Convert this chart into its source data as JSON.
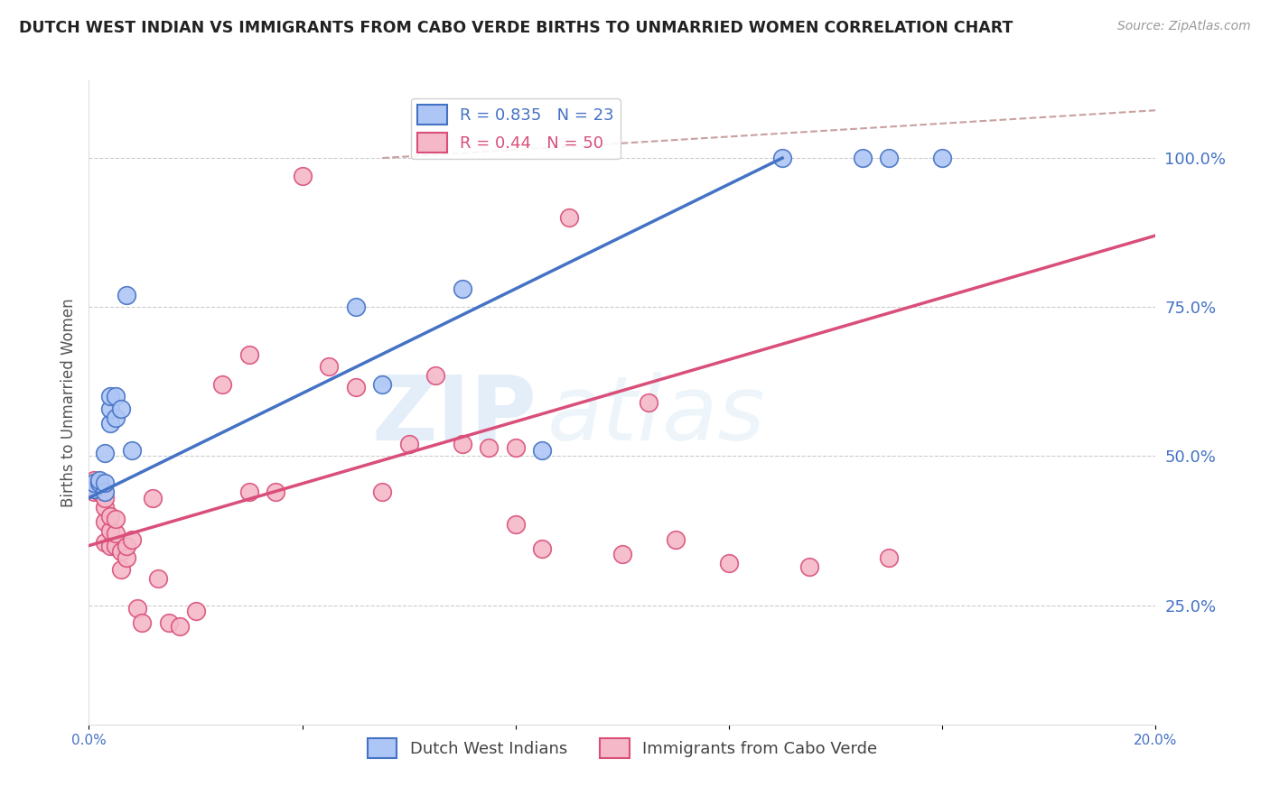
{
  "title": "DUTCH WEST INDIAN VS IMMIGRANTS FROM CABO VERDE BIRTHS TO UNMARRIED WOMEN CORRELATION CHART",
  "source": "Source: ZipAtlas.com",
  "ylabel": "Births to Unmarried Women",
  "blue_label": "Dutch West Indians",
  "pink_label": "Immigrants from Cabo Verde",
  "blue_R": 0.835,
  "blue_N": 23,
  "pink_R": 0.44,
  "pink_N": 50,
  "xlim": [
    0.0,
    0.2
  ],
  "ylim": [
    0.05,
    1.13
  ],
  "yticks": [
    0.25,
    0.5,
    0.75,
    1.0
  ],
  "ytick_labels": [
    "25.0%",
    "50.0%",
    "75.0%",
    "100.0%"
  ],
  "xticks": [
    0.0,
    0.04,
    0.08,
    0.12,
    0.16,
    0.2
  ],
  "xtick_labels": [
    "0.0%",
    "",
    "",
    "",
    "",
    "20.0%"
  ],
  "blue_fill": "#aec6f5",
  "blue_edge": "#4472c4",
  "pink_fill": "#f5b8c8",
  "pink_edge": "#d94f7a",
  "blue_line_color": "#4472c4",
  "pink_line_color": "#d94f7a",
  "ref_line_color": "#c9a0a0",
  "axis_color": "#4472c4",
  "blue_scatter_x": [
    0.001,
    0.001,
    0.002,
    0.002,
    0.003,
    0.003,
    0.003,
    0.004,
    0.004,
    0.004,
    0.005,
    0.005,
    0.006,
    0.007,
    0.008,
    0.05,
    0.055,
    0.07,
    0.085,
    0.13,
    0.145,
    0.15,
    0.16
  ],
  "blue_scatter_y": [
    0.445,
    0.455,
    0.455,
    0.46,
    0.44,
    0.455,
    0.505,
    0.555,
    0.58,
    0.6,
    0.565,
    0.6,
    0.58,
    0.77,
    0.51,
    0.75,
    0.62,
    0.78,
    0.51,
    1.0,
    1.0,
    1.0,
    1.0
  ],
  "pink_scatter_x": [
    0.001,
    0.001,
    0.001,
    0.002,
    0.002,
    0.002,
    0.003,
    0.003,
    0.003,
    0.003,
    0.004,
    0.004,
    0.004,
    0.005,
    0.005,
    0.005,
    0.006,
    0.006,
    0.007,
    0.007,
    0.008,
    0.009,
    0.01,
    0.012,
    0.013,
    0.015,
    0.017,
    0.02,
    0.025,
    0.03,
    0.03,
    0.035,
    0.04,
    0.045,
    0.05,
    0.055,
    0.06,
    0.065,
    0.07,
    0.075,
    0.08,
    0.08,
    0.085,
    0.09,
    0.1,
    0.105,
    0.11,
    0.12,
    0.135,
    0.15
  ],
  "pink_scatter_y": [
    0.44,
    0.45,
    0.46,
    0.44,
    0.445,
    0.45,
    0.355,
    0.39,
    0.415,
    0.43,
    0.35,
    0.375,
    0.4,
    0.35,
    0.37,
    0.395,
    0.31,
    0.34,
    0.33,
    0.35,
    0.36,
    0.245,
    0.22,
    0.43,
    0.295,
    0.22,
    0.215,
    0.24,
    0.62,
    0.67,
    0.44,
    0.44,
    0.97,
    0.65,
    0.615,
    0.44,
    0.52,
    0.635,
    0.52,
    0.515,
    0.515,
    0.385,
    0.345,
    0.9,
    0.335,
    0.59,
    0.36,
    0.32,
    0.315,
    0.33
  ],
  "blue_line_x0": 0.0,
  "blue_line_y0": 0.43,
  "blue_line_x1": 0.13,
  "blue_line_y1": 1.0,
  "pink_line_x0": 0.0,
  "pink_line_y0": 0.35,
  "pink_line_x1": 0.2,
  "pink_line_y1": 0.87,
  "ref_line_x0": 0.055,
  "ref_line_y0": 1.0,
  "ref_line_x1": 0.2,
  "ref_line_y1": 1.08,
  "watermark_zip": "ZIP",
  "watermark_atlas": "atlas",
  "background_color": "#ffffff",
  "grid_color": "#cccccc",
  "title_fontsize": 12.5,
  "source_fontsize": 10,
  "tick_fontsize": 11,
  "ytick_fontsize": 13,
  "legend_fontsize": 13
}
